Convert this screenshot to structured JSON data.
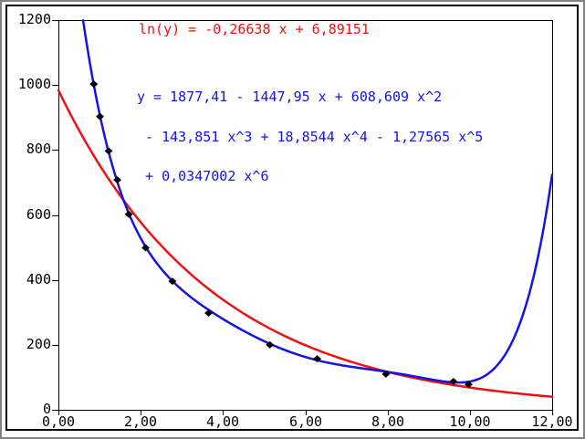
{
  "window": {
    "background": "#ffffff",
    "outer_border_color": "#828282",
    "frame_border_color": "#000000"
  },
  "annotations": {
    "ln_fit": {
      "text": "ln(y) = -0,26638 x + 6,89151",
      "color": "#ee1111"
    },
    "poly_fit_lines": [
      "y = 1877,41 - 1447,95 x + 608,609 x^2",
      " - 143,851 x^3 + 18,8544 x^4 - 1,27565 x^5",
      " + 0,0347002 x^6"
    ],
    "poly_fit_color": "#1414e0"
  },
  "chart_data": {
    "type": "scatter",
    "title": "",
    "xlabel": "",
    "ylabel": "",
    "xlim": [
      0,
      12
    ],
    "ylim": [
      0,
      1200
    ],
    "grid": false,
    "legend": "none",
    "x_ticks": {
      "values": [
        0,
        2,
        4,
        6,
        8,
        10,
        12
      ],
      "labels": [
        "0,00",
        "2,00",
        "4,00",
        "6,00",
        "8,00",
        "10,00",
        "12,00"
      ]
    },
    "y_ticks": {
      "values": [
        0,
        200,
        400,
        600,
        800,
        1000,
        1200
      ],
      "labels": [
        "0",
        "200",
        "400",
        "600",
        "800",
        "1000",
        "1200"
      ]
    },
    "points": {
      "marker": "diamond",
      "color": "#000000",
      "x": [
        0.86,
        1.01,
        1.22,
        1.43,
        1.71,
        2.12,
        2.77,
        3.65,
        5.14,
        6.29,
        7.96,
        9.6,
        9.97
      ],
      "y": [
        1003,
        903,
        797,
        708,
        602,
        499,
        396,
        298,
        200,
        157,
        110,
        87,
        78
      ]
    },
    "series": [
      {
        "name": "exponential-fit",
        "model": "exp_of_linear",
        "equation": "ln(y) = -0,26638 x + 6,89151",
        "slope": -0.26638,
        "intercept": 6.89151,
        "color": "#ee1111",
        "stroke_width": 2.5
      },
      {
        "name": "polynomial-fit-degree-6",
        "model": "polynomial",
        "equation": "y = 1877,41 - 1447,95 x + 608,609 x^2 - 143,851 x^3 + 18,8544 x^4 - 1,27565 x^5 + 0,0347002 x^6",
        "coefficients": [
          1877.41,
          -1447.95,
          608.609,
          -143.851,
          18.8544,
          -1.27565,
          0.0347002
        ],
        "color": "#1414e0",
        "stroke_width": 2.5
      }
    ]
  }
}
